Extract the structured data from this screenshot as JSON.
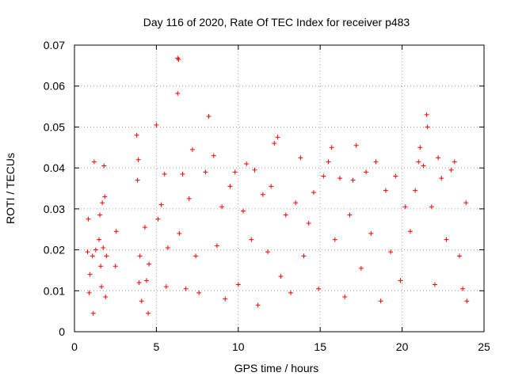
{
  "chart_data": {
    "type": "scatter",
    "title": "Day 116 of 2020, Rate Of TEC Index for receiver p483",
    "xlabel": "GPS time / hours",
    "ylabel": "ROTI / TECUs",
    "xlim": [
      0,
      25
    ],
    "ylim": [
      0,
      0.07
    ],
    "x_ticks": [
      0,
      5,
      10,
      15,
      20,
      25
    ],
    "x_tick_labels": [
      "0",
      "5",
      "10",
      "15",
      "20",
      "25"
    ],
    "y_ticks": [
      0,
      0.01,
      0.02,
      0.03,
      0.04,
      0.05,
      0.06,
      0.07
    ],
    "y_tick_labels": [
      "0",
      "0.01",
      "0.02",
      "0.03",
      "0.04",
      "0.05",
      "0.06",
      "0.07"
    ],
    "grid": true,
    "marker": "plus",
    "color": "#ff0000",
    "series": [
      {
        "name": "ROTI",
        "points": [
          [
            0.8,
            0.0195
          ],
          [
            0.85,
            0.0275
          ],
          [
            0.9,
            0.0095
          ],
          [
            0.95,
            0.014
          ],
          [
            1.1,
            0.0185
          ],
          [
            1.15,
            0.0045
          ],
          [
            1.2,
            0.0415
          ],
          [
            1.3,
            0.02
          ],
          [
            1.5,
            0.0225
          ],
          [
            1.55,
            0.0285
          ],
          [
            1.6,
            0.016
          ],
          [
            1.65,
            0.011
          ],
          [
            1.7,
            0.0315
          ],
          [
            1.75,
            0.0205
          ],
          [
            1.8,
            0.0405
          ],
          [
            1.85,
            0.033
          ],
          [
            1.9,
            0.0085
          ],
          [
            1.95,
            0.0185
          ],
          [
            2.5,
            0.016
          ],
          [
            2.55,
            0.0245
          ],
          [
            3.8,
            0.048
          ],
          [
            3.85,
            0.037
          ],
          [
            3.9,
            0.042
          ],
          [
            3.95,
            0.012
          ],
          [
            4.0,
            0.0185
          ],
          [
            4.1,
            0.0075
          ],
          [
            4.3,
            0.0255
          ],
          [
            4.4,
            0.0125
          ],
          [
            4.5,
            0.0045
          ],
          [
            4.55,
            0.0165
          ],
          [
            5.0,
            0.0505
          ],
          [
            5.1,
            0.0275
          ],
          [
            5.3,
            0.031
          ],
          [
            5.5,
            0.0385
          ],
          [
            5.6,
            0.011
          ],
          [
            5.7,
            0.0205
          ],
          [
            6.3,
            0.0668
          ],
          [
            6.35,
            0.0665
          ],
          [
            6.3,
            0.0582
          ],
          [
            6.4,
            0.024
          ],
          [
            6.6,
            0.0385
          ],
          [
            6.8,
            0.0105
          ],
          [
            7.0,
            0.0325
          ],
          [
            7.2,
            0.0445
          ],
          [
            7.4,
            0.0185
          ],
          [
            7.6,
            0.0095
          ],
          [
            8.0,
            0.039
          ],
          [
            8.2,
            0.0526
          ],
          [
            8.5,
            0.043
          ],
          [
            8.7,
            0.021
          ],
          [
            9.0,
            0.0305
          ],
          [
            9.2,
            0.008
          ],
          [
            9.5,
            0.0355
          ],
          [
            9.8,
            0.039
          ],
          [
            10.0,
            0.0115
          ],
          [
            10.3,
            0.0295
          ],
          [
            10.5,
            0.041
          ],
          [
            10.8,
            0.0225
          ],
          [
            11.0,
            0.0395
          ],
          [
            11.2,
            0.0065
          ],
          [
            11.5,
            0.0335
          ],
          [
            11.8,
            0.0195
          ],
          [
            12.0,
            0.0355
          ],
          [
            12.2,
            0.046
          ],
          [
            12.4,
            0.0475
          ],
          [
            12.6,
            0.0135
          ],
          [
            12.9,
            0.0285
          ],
          [
            13.2,
            0.0095
          ],
          [
            13.5,
            0.0315
          ],
          [
            13.8,
            0.0425
          ],
          [
            14.0,
            0.0185
          ],
          [
            14.3,
            0.0265
          ],
          [
            14.6,
            0.034
          ],
          [
            14.9,
            0.0105
          ],
          [
            15.2,
            0.038
          ],
          [
            15.5,
            0.0415
          ],
          [
            15.7,
            0.045
          ],
          [
            15.9,
            0.0225
          ],
          [
            16.2,
            0.0375
          ],
          [
            16.5,
            0.0085
          ],
          [
            16.8,
            0.0285
          ],
          [
            17.0,
            0.037
          ],
          [
            17.2,
            0.0455
          ],
          [
            17.5,
            0.0155
          ],
          [
            17.8,
            0.039
          ],
          [
            18.1,
            0.024
          ],
          [
            18.4,
            0.0415
          ],
          [
            18.7,
            0.0075
          ],
          [
            19.0,
            0.0345
          ],
          [
            19.3,
            0.0195
          ],
          [
            19.6,
            0.038
          ],
          [
            19.9,
            0.0125
          ],
          [
            20.2,
            0.0305
          ],
          [
            20.5,
            0.0245
          ],
          [
            20.8,
            0.0345
          ],
          [
            21.0,
            0.0415
          ],
          [
            21.1,
            0.045
          ],
          [
            21.3,
            0.0405
          ],
          [
            21.5,
            0.053
          ],
          [
            21.55,
            0.05
          ],
          [
            21.8,
            0.0305
          ],
          [
            22.0,
            0.0115
          ],
          [
            22.2,
            0.0425
          ],
          [
            22.4,
            0.0375
          ],
          [
            22.7,
            0.0225
          ],
          [
            23.0,
            0.0395
          ],
          [
            23.2,
            0.0415
          ],
          [
            23.5,
            0.0185
          ],
          [
            23.7,
            0.0105
          ],
          [
            23.9,
            0.0315
          ],
          [
            23.95,
            0.0075
          ]
        ]
      }
    ]
  }
}
